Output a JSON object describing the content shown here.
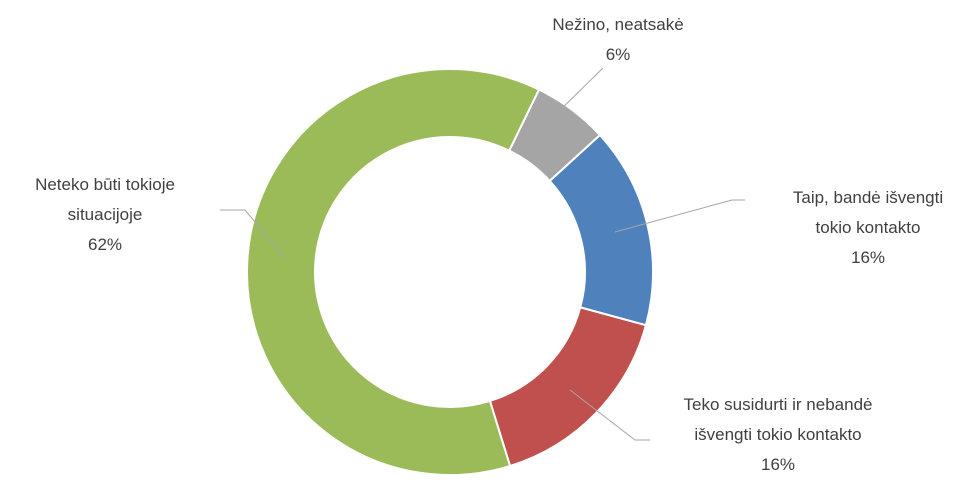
{
  "chart_data": {
    "type": "donut",
    "categories": [
      "Nežino, neatsakė",
      "Taip, bandė išvengti tokio kontakto",
      "Teko susidurti ir nebandė išvengti tokio kontakto",
      "Neteko būti tokioje situacijoje"
    ],
    "values": [
      6,
      16,
      16,
      62
    ],
    "value_labels": [
      "6%",
      "16%",
      "16%",
      "62%"
    ],
    "colors": [
      "#a5a5a5",
      "#4f81bd",
      "#c0504d",
      "#9bbb59"
    ]
  }
}
